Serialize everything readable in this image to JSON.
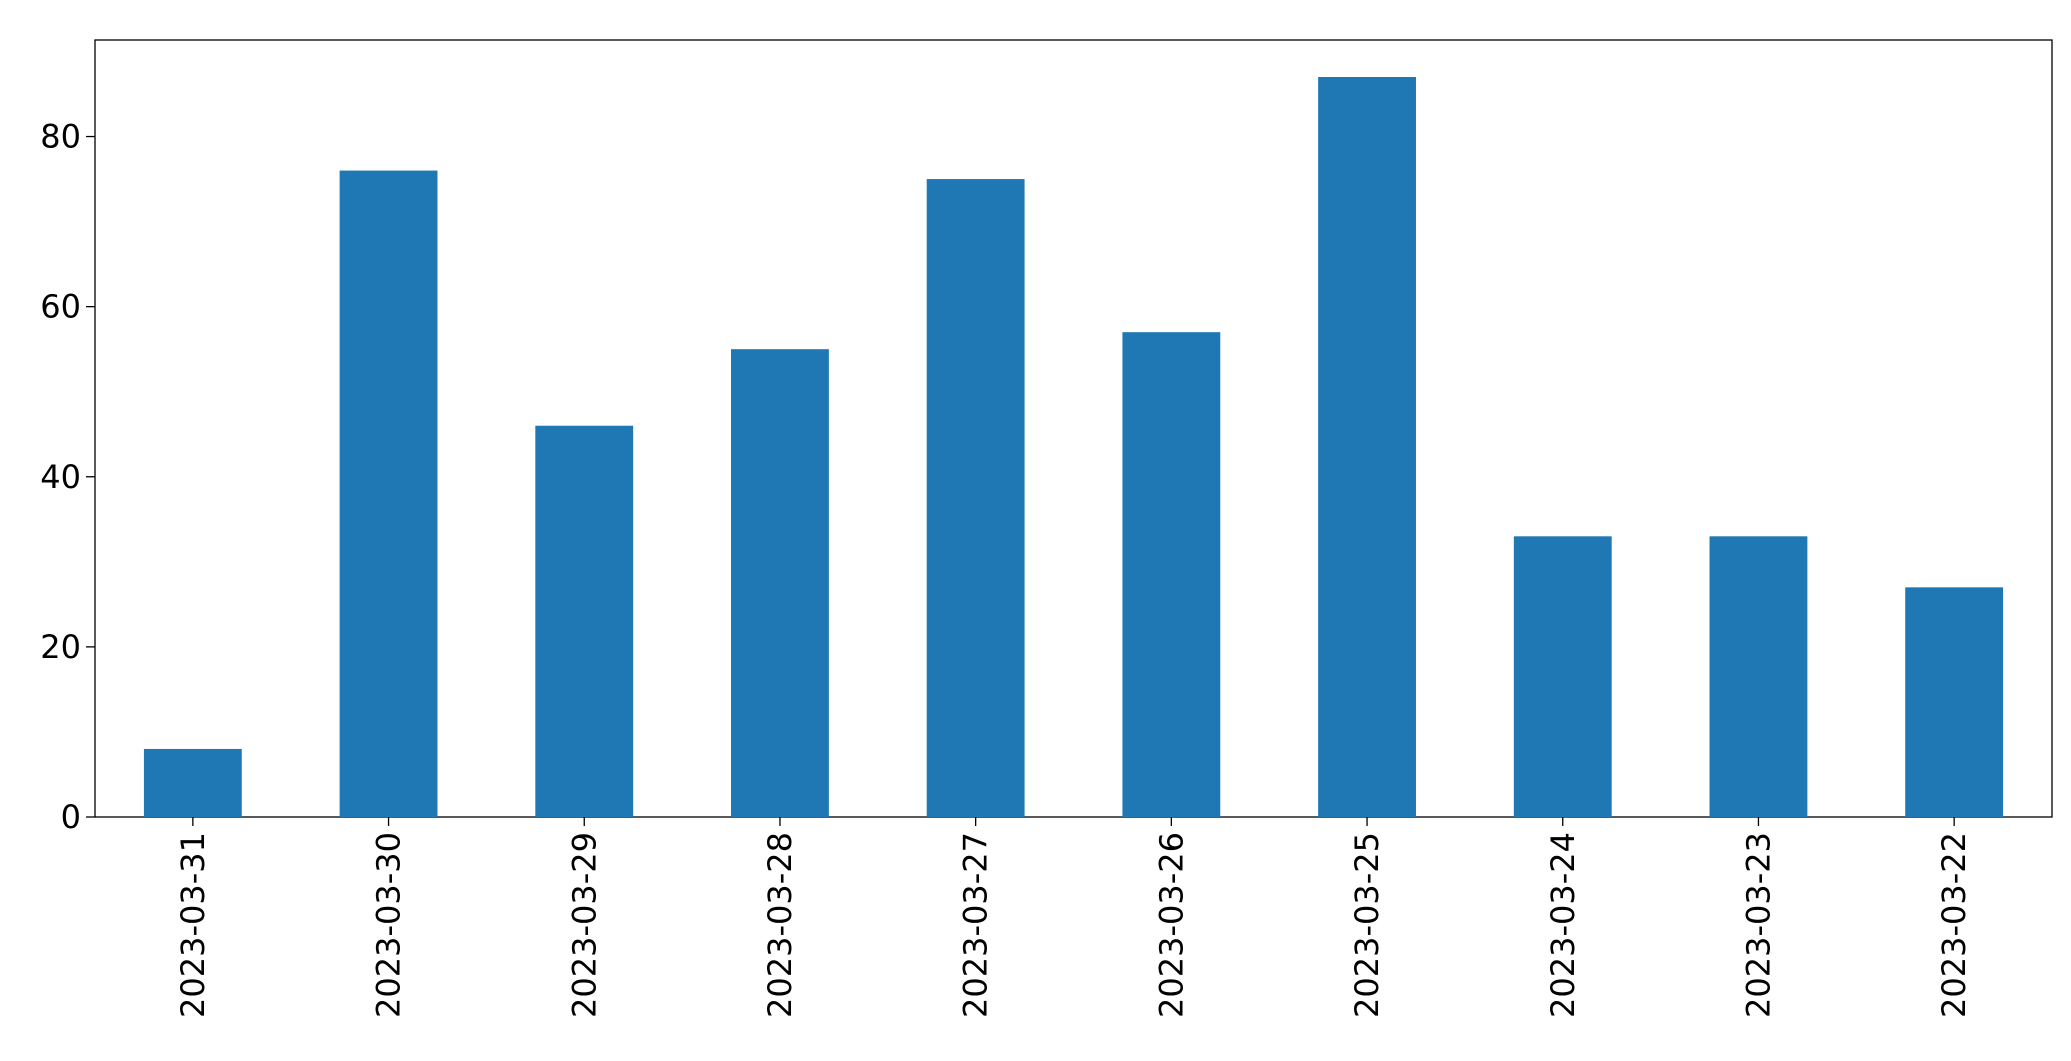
{
  "chart_data": {
    "type": "bar",
    "categories": [
      "2023-03-31",
      "2023-03-30",
      "2023-03-29",
      "2023-03-28",
      "2023-03-27",
      "2023-03-26",
      "2023-03-25",
      "2023-03-24",
      "2023-03-23",
      "2023-03-22"
    ],
    "values": [
      8,
      76,
      46,
      55,
      75,
      57,
      87,
      33,
      33,
      27
    ],
    "color": "#1f77b4",
    "ylim": [
      0,
      91.35
    ],
    "yticks": [
      0,
      20,
      40,
      60,
      80
    ],
    "grid": false
  }
}
